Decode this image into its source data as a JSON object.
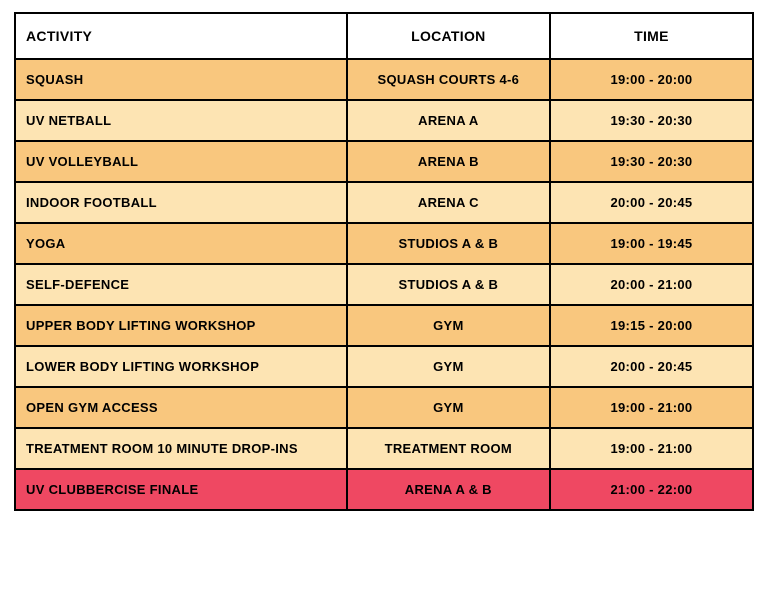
{
  "table": {
    "columns": [
      "ACTIVITY",
      "LOCATION",
      "TIME"
    ],
    "header_bg": "#ffffff",
    "header_fontsize": 14,
    "cell_fontsize": 13,
    "border_color": "#000000",
    "col_widths_pct": [
      46,
      27,
      27
    ],
    "row_colors": {
      "odd": "#f9c77e",
      "even": "#fde4b3",
      "finale": "#ef4862"
    },
    "rows": [
      {
        "activity": "SQUASH",
        "location": "SQUASH COURTS 4-6",
        "time": "19:00 - 20:00",
        "bg": "#f9c77e"
      },
      {
        "activity": "UV NETBALL",
        "location": "ARENA A",
        "time": "19:30 - 20:30",
        "bg": "#fde4b3"
      },
      {
        "activity": "UV VOLLEYBALL",
        "location": "ARENA B",
        "time": "19:30 - 20:30",
        "bg": "#f9c77e"
      },
      {
        "activity": "INDOOR FOOTBALL",
        "location": "ARENA C",
        "time": "20:00 - 20:45",
        "bg": "#fde4b3"
      },
      {
        "activity": "YOGA",
        "location": "STUDIOS A & B",
        "time": "19:00 - 19:45",
        "bg": "#f9c77e"
      },
      {
        "activity": "SELF-DEFENCE",
        "location": "STUDIOS A & B",
        "time": "20:00 - 21:00",
        "bg": "#fde4b3"
      },
      {
        "activity": "UPPER BODY LIFTING WORKSHOP",
        "location": "GYM",
        "time": "19:15 - 20:00",
        "bg": "#f9c77e"
      },
      {
        "activity": "LOWER BODY LIFTING WORKSHOP",
        "location": "GYM",
        "time": "20:00 - 20:45",
        "bg": "#fde4b3"
      },
      {
        "activity": "OPEN GYM ACCESS",
        "location": "GYM",
        "time": "19:00 - 21:00",
        "bg": "#f9c77e"
      },
      {
        "activity": "TREATMENT ROOM 10 MINUTE DROP-INS",
        "location": "TREATMENT ROOM",
        "time": "19:00 - 21:00",
        "bg": "#fde4b3"
      },
      {
        "activity": "UV CLUBBERCISE FINALE",
        "location": "ARENA A & B",
        "time": "21:00 - 22:00",
        "bg": "#ef4862"
      }
    ]
  }
}
